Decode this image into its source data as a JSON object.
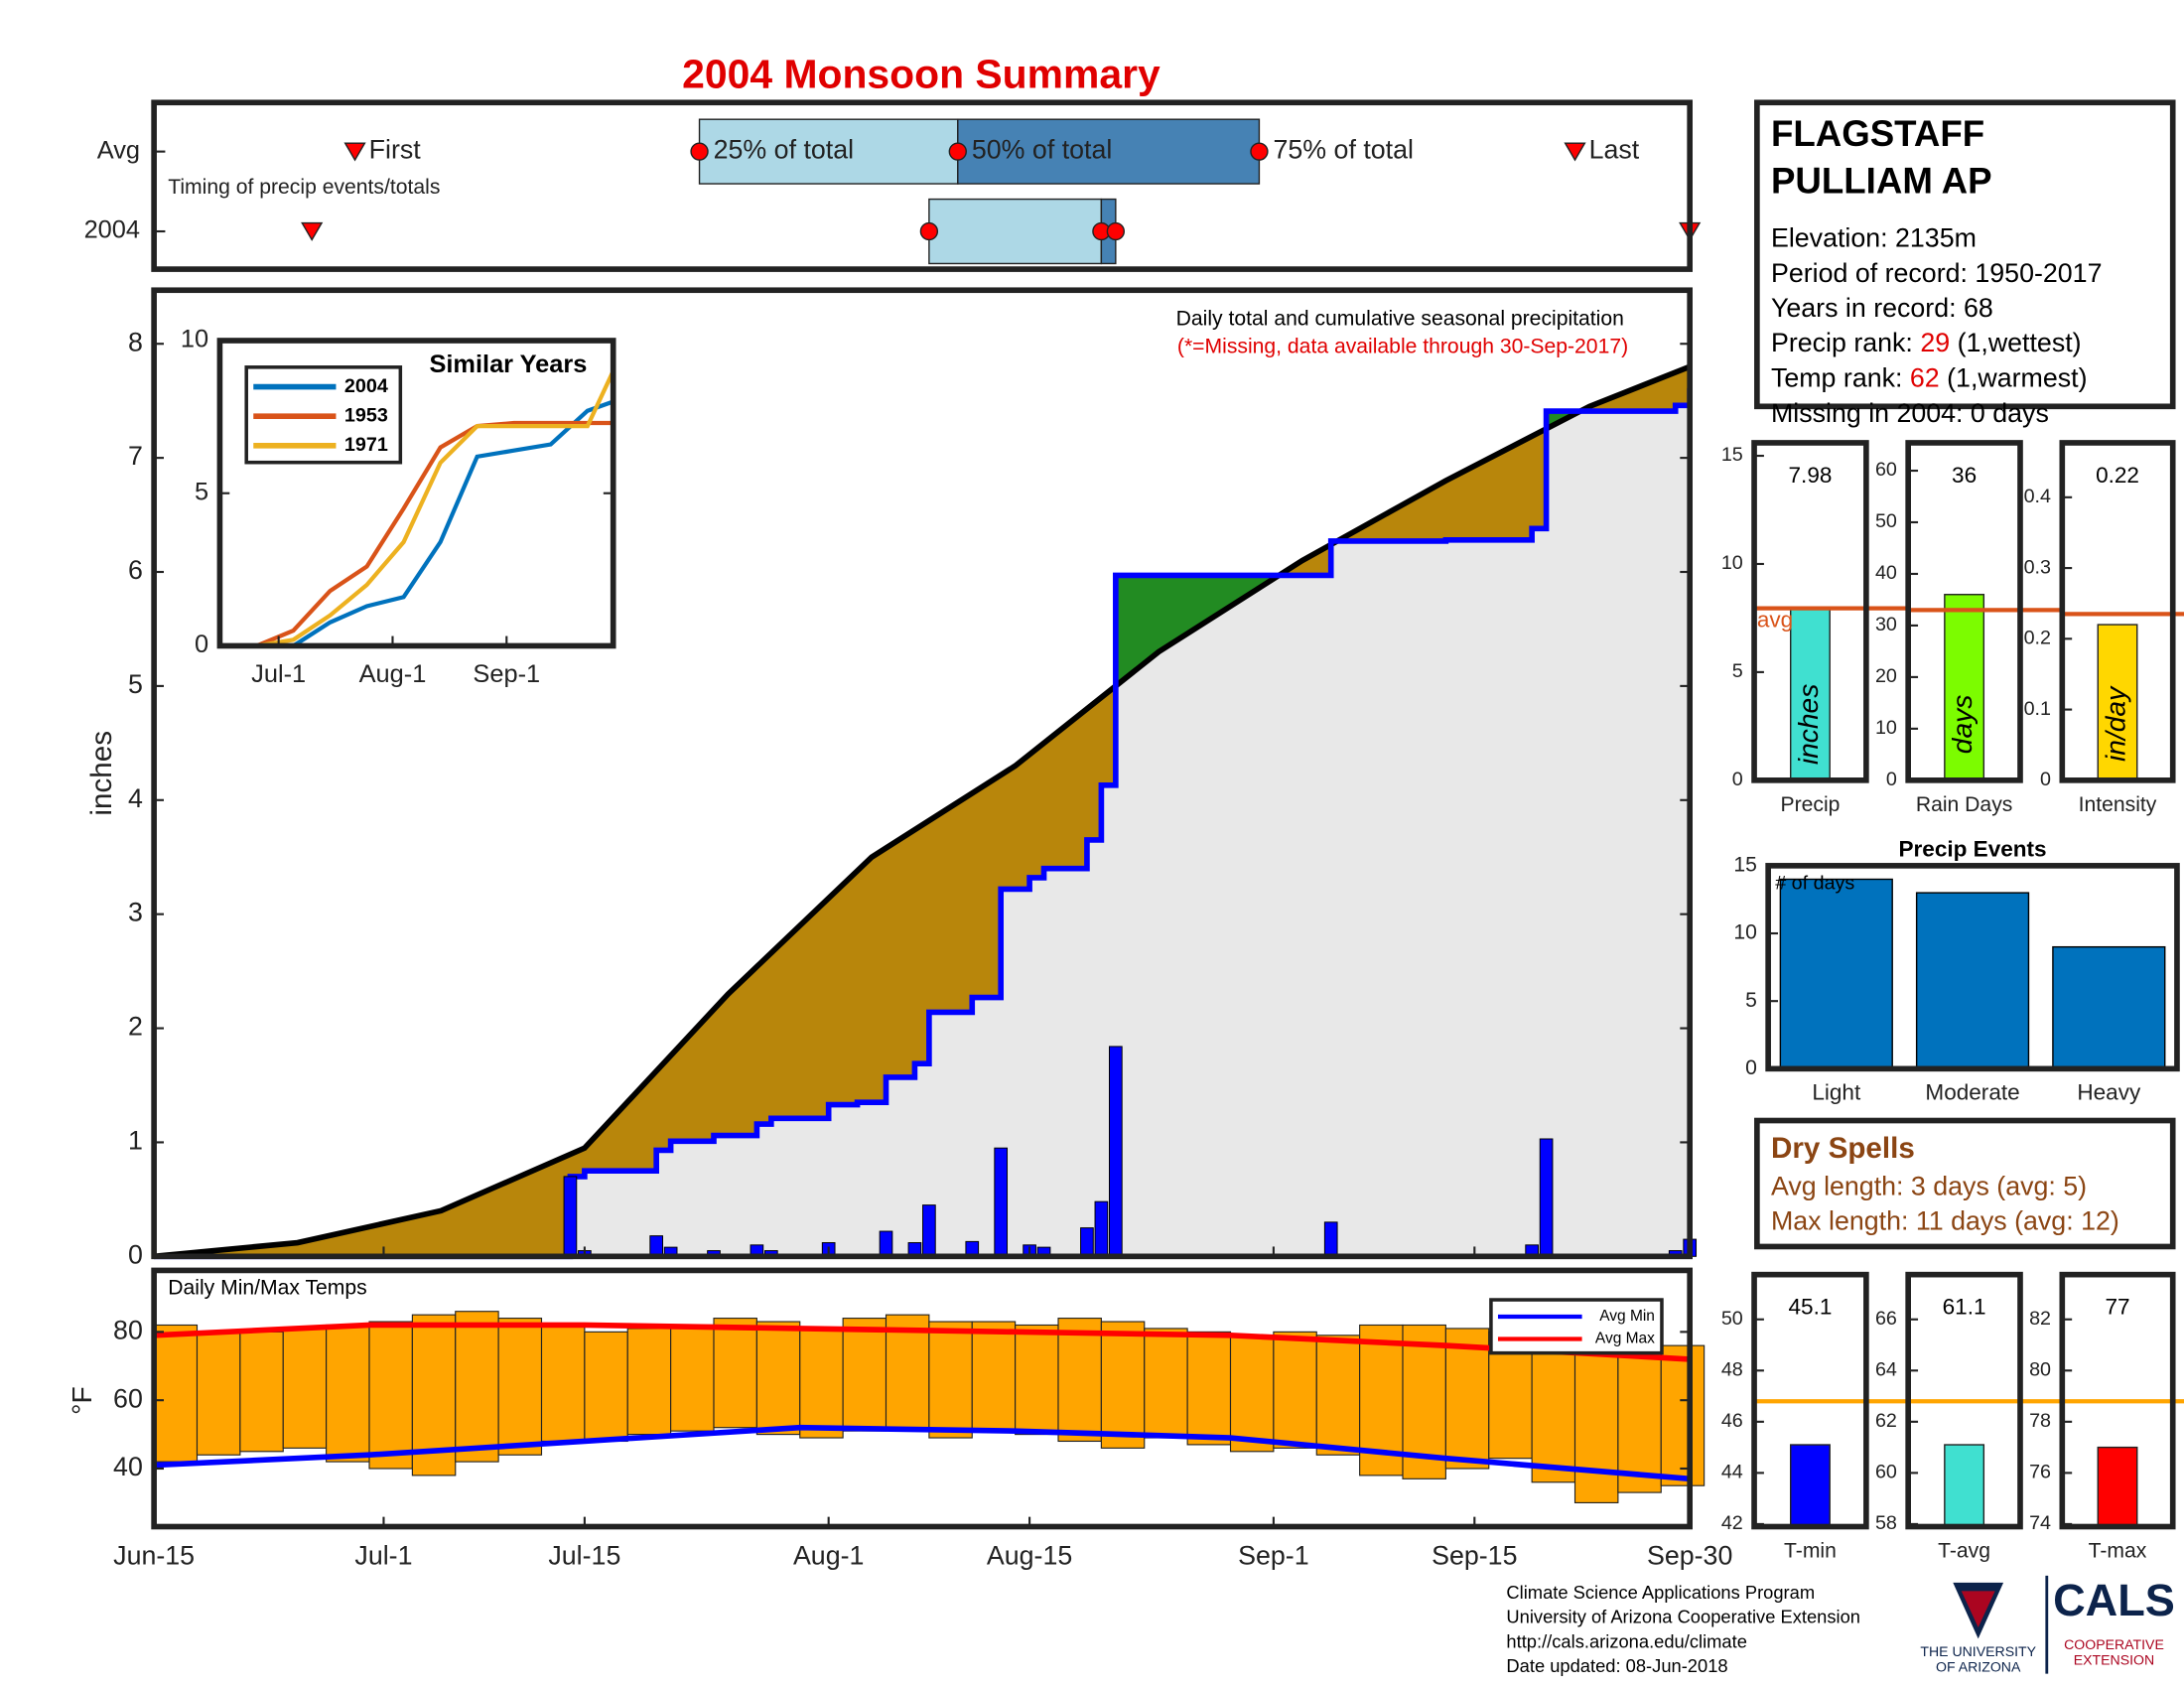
{
  "title": "2004 Monsoon Summary",
  "station": {
    "name": [
      "FLAGSTAFF",
      "PULLIAM AP"
    ],
    "lines": [
      "Elevation: 2135m",
      "Period of record: 1950-2017",
      "Years in record: 68"
    ],
    "precip_rank": {
      "label": "Precip rank:",
      "value": 29,
      "note": "(1,wettest)"
    },
    "temp_rank": {
      "label": "Temp rank:",
      "value": 62,
      "note": "(1,warmest)"
    },
    "missing": "Missing in 2004: 0 days"
  },
  "dry_spells": {
    "title": "Dry Spells",
    "lines": [
      "Avg length: 3 days (avg: 5)",
      "Max length: 11 days (avg: 12)"
    ]
  },
  "footer": [
    "Climate Science Applications Program",
    "University of Arizona Cooperative Extension",
    "http://cals.arizona.edu/climate",
    " Date updated: 08-Jun-2018"
  ],
  "logos": {
    "university": [
      "THE UNIVERSITY",
      "OF ARIZONA"
    ],
    "cals": "CALS",
    "extension": [
      "COOPERATIVE",
      "EXTENSION"
    ]
  },
  "chart_data": [
    {
      "type": "timing",
      "note": "Timing of precip events/totals",
      "xlim": [
        0,
        107
      ],
      "markers": [
        "First",
        "25% of total",
        "50% of total",
        "75% of total",
        "Last"
      ],
      "colors": [
        "#add8e6",
        "#4682b4"
      ],
      "marker_color": "#ff0000",
      "series": [
        {
          "name": "Avg",
          "values": [
            14,
            38,
            56,
            77,
            99
          ]
        },
        {
          "name": "2004",
          "values": [
            11,
            54,
            66,
            67,
            107
          ]
        }
      ]
    },
    {
      "type": "cumulative",
      "ylabel": "inches",
      "annotation": "Daily total and cumulative seasonal precipitation",
      "note": "(*=Missing, data available through 30-Sep-2017)",
      "xlim": [
        0,
        107
      ],
      "ylim": [
        0,
        8.47
      ],
      "yticks": [
        0,
        1,
        2,
        3,
        4,
        5,
        6,
        7,
        8
      ],
      "above_color": "#228b22",
      "below_color": "#b8860b",
      "base_color": "#e8e8e8",
      "daily": {
        "color": "#0000ff",
        "x": [
          29,
          30,
          35,
          36,
          39,
          42,
          43,
          47,
          49,
          51,
          53,
          54,
          57,
          59,
          61,
          62,
          65,
          66,
          67,
          82,
          90,
          96,
          97,
          106,
          107
        ],
        "values": [
          0.7,
          0.05,
          0.18,
          0.08,
          0.05,
          0.1,
          0.05,
          0.12,
          0.02,
          0.22,
          0.12,
          0.45,
          0.13,
          0.95,
          0.1,
          0.08,
          0.25,
          0.48,
          1.84,
          0.3,
          0.01,
          0.1,
          1.03,
          0.05,
          0.15
        ]
      },
      "average": {
        "x": [
          0,
          10,
          20,
          30,
          40,
          50,
          60,
          66,
          70,
          80,
          90,
          100,
          107
        ],
        "values": [
          0,
          0.12,
          0.4,
          0.95,
          2.3,
          3.5,
          4.3,
          4.9,
          5.3,
          6.1,
          6.8,
          7.45,
          7.8
        ]
      }
    },
    {
      "type": "line",
      "title": "Similar Years",
      "xlim": [
        0,
        107
      ],
      "ylim": [
        0,
        10
      ],
      "yticks": [
        0,
        5,
        10
      ],
      "xticks": [
        {
          "value": 16,
          "label": "Jul-1"
        },
        {
          "value": 47,
          "label": "Aug-1"
        },
        {
          "value": 78,
          "label": "Sep-1"
        }
      ],
      "x": [
        0,
        10,
        20,
        30,
        40,
        50,
        60,
        70,
        80,
        90,
        100,
        107
      ],
      "series": [
        {
          "name": "2004",
          "color": "#0072bd",
          "values": [
            0,
            0,
            0,
            0.77,
            1.3,
            1.6,
            3.4,
            6.2,
            6.4,
            6.6,
            7.7,
            8.0
          ]
        },
        {
          "name": "1953",
          "color": "#d95319",
          "values": [
            0,
            0,
            0.5,
            1.8,
            2.6,
            4.5,
            6.5,
            7.2,
            7.3,
            7.3,
            7.3,
            7.3
          ]
        },
        {
          "name": "1971",
          "color": "#edb120",
          "values": [
            0,
            0,
            0.2,
            1.0,
            2.0,
            3.4,
            6.0,
            7.2,
            7.2,
            7.2,
            7.2,
            9.0
          ]
        }
      ]
    },
    {
      "type": "summary_bar",
      "category": "Precip",
      "value": 7.98,
      "avg": 7.95,
      "avg_label": "avg",
      "unit": "inches",
      "color": "#40e0d0",
      "avg_color": "#d95319",
      "ylim": [
        0,
        15.6
      ],
      "yticks": [
        0,
        5,
        10,
        15
      ]
    },
    {
      "type": "summary_bar",
      "category": "Rain Days",
      "value": 36,
      "avg": 33,
      "unit": "days",
      "color": "#7cfc00",
      "avg_color": "#d95319",
      "ylim": [
        0,
        65.4
      ],
      "yticks": [
        0,
        10,
        20,
        30,
        40,
        50,
        60
      ]
    },
    {
      "type": "summary_bar",
      "category": "Intensity",
      "value": 0.22,
      "avg": 0.235,
      "unit": "in/day",
      "color": "#ffd700",
      "avg_color": "#d95319",
      "ylim": [
        0,
        0.477
      ],
      "yticks": [
        0,
        0.1,
        0.2,
        0.3,
        0.4
      ]
    },
    {
      "type": "bar",
      "title": "Precip Events",
      "ylabel": "# of days",
      "categories": [
        "Light",
        "Moderate",
        "Heavy"
      ],
      "values": [
        14,
        13,
        9
      ],
      "color": "#0072bd",
      "ylim": [
        0,
        15
      ],
      "yticks": [
        0,
        5,
        10,
        15
      ]
    },
    {
      "type": "temps",
      "title": "Daily Min/Max Temps",
      "ylabel": "°F",
      "xlim": [
        0,
        107
      ],
      "ylim": [
        23,
        98
      ],
      "yticks": [
        40,
        60,
        80
      ],
      "bar_color": "#ffa500",
      "xticks": [
        {
          "value": 0,
          "label": "Jun-15"
        },
        {
          "value": 16,
          "label": "Jul-1"
        },
        {
          "value": 30,
          "label": "Jul-15"
        },
        {
          "value": 47,
          "label": "Aug-1"
        },
        {
          "value": 61,
          "label": "Aug-15"
        },
        {
          "value": 78,
          "label": "Sep-1"
        },
        {
          "value": 92,
          "label": "Sep-15"
        },
        {
          "value": 107,
          "label": "Sep-30"
        }
      ],
      "x": [
        0,
        3,
        6,
        9,
        12,
        15,
        18,
        21,
        24,
        27,
        30,
        33,
        36,
        39,
        42,
        45,
        48,
        51,
        54,
        57,
        60,
        63,
        66,
        69,
        72,
        75,
        78,
        81,
        84,
        87,
        90,
        93,
        96,
        99,
        102,
        105
      ],
      "max": [
        82,
        80,
        80,
        81,
        82,
        83,
        85,
        86,
        84,
        82,
        80,
        81,
        82,
        84,
        83,
        81,
        84,
        85,
        83,
        83,
        82,
        84,
        83,
        81,
        80,
        79,
        80,
        79,
        82,
        82,
        81,
        80,
        79,
        75,
        74,
        76
      ],
      "min": [
        42,
        44,
        45,
        46,
        42,
        40,
        38,
        42,
        44,
        48,
        48,
        50,
        51,
        52,
        50,
        49,
        51,
        52,
        49,
        51,
        50,
        48,
        46,
        49,
        47,
        45,
        46,
        44,
        38,
        37,
        40,
        43,
        36,
        30,
        33,
        35
      ],
      "series": [
        {
          "name": "Avg Min",
          "color": "#0000ff",
          "x": [
            0,
            15,
            30,
            45,
            60,
            75,
            90,
            107
          ],
          "values": [
            41,
            44,
            48,
            52,
            51,
            49,
            43,
            37
          ]
        },
        {
          "name": "Avg Max",
          "color": "#ff0000",
          "x": [
            0,
            15,
            30,
            45,
            60,
            75,
            90,
            107
          ],
          "values": [
            79,
            82,
            82,
            81,
            80,
            79,
            76,
            72
          ]
        }
      ]
    },
    {
      "type": "summary_bar",
      "category": "T-min",
      "value": 45.1,
      "avg": 46.8,
      "color": "#0000ff",
      "avg_color": "#ffa500",
      "ylim": [
        41.9,
        51.75
      ],
      "yticks": [
        42,
        44,
        46,
        48,
        50
      ]
    },
    {
      "type": "summary_bar",
      "category": "T-avg",
      "value": 61.1,
      "avg": 62.8,
      "color": "#40e0d0",
      "avg_color": "#ffa500",
      "ylim": [
        57.9,
        67.75
      ],
      "yticks": [
        58,
        60,
        62,
        64,
        66
      ]
    },
    {
      "type": "summary_bar",
      "category": "T-max",
      "value": 77,
      "avg": 78.8,
      "color": "#ff0000",
      "avg_color": "#ffa500",
      "ylim": [
        73.9,
        83.75
      ],
      "yticks": [
        74,
        76,
        78,
        80,
        82
      ]
    }
  ]
}
